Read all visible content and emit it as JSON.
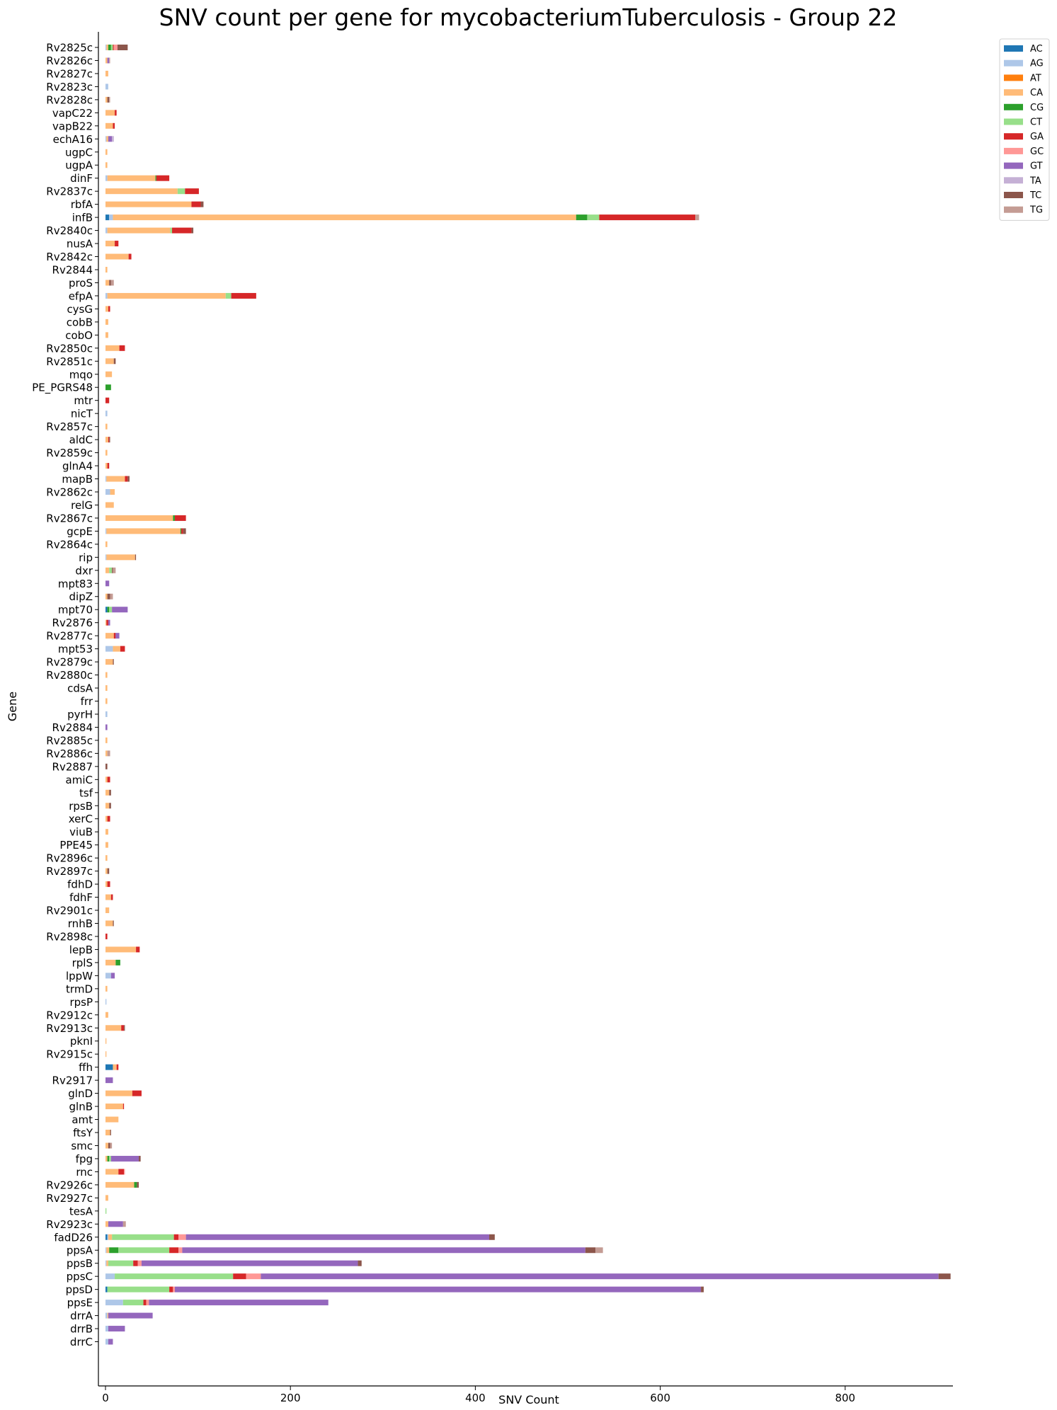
{
  "chart_data": {
    "type": "bar",
    "orientation": "horizontal",
    "stacked": true,
    "title": "SNV count per gene for mycobacteriumTuberculosis - Group 22",
    "xlabel": "SNV Count",
    "ylabel": "Gene",
    "xlim": [
      -8,
      918
    ],
    "xticks": [
      0,
      200,
      400,
      600,
      800
    ],
    "legend_position": "top-right",
    "series_names": [
      "AC",
      "AG",
      "AT",
      "CA",
      "CG",
      "CT",
      "GA",
      "GC",
      "GT",
      "TA",
      "TC",
      "TG"
    ],
    "colors": {
      "AC": "#1f77b4",
      "AG": "#aec7e8",
      "AT": "#ff7f0e",
      "CA": "#ffbb78",
      "CG": "#2ca02c",
      "CT": "#98df8a",
      "GA": "#d62728",
      "GC": "#ff9896",
      "GT": "#9467bd",
      "TA": "#c5b0d5",
      "TC": "#8c564b",
      "TG": "#c49c94"
    },
    "genes": [
      "Rv2825c",
      "Rv2826c",
      "Rv2827c",
      "Rv2823c",
      "Rv2828c",
      "vapC22",
      "vapB22",
      "echA16",
      "ugpC",
      "ugpA",
      "dinF",
      "Rv2837c",
      "rbfA",
      "infB",
      "Rv2840c",
      "nusA",
      "Rv2842c",
      "Rv2844",
      "proS",
      "efpA",
      "cysG",
      "cobB",
      "cobO",
      "Rv2850c",
      "Rv2851c",
      "mqo",
      "PE_PGRS48",
      "mtr",
      "nicT",
      "Rv2857c",
      "aldC",
      "Rv2859c",
      "glnA4",
      "mapB",
      "Rv2862c",
      "relG",
      "Rv2867c",
      "gcpE",
      "Rv2864c",
      "rip",
      "dxr",
      "mpt83",
      "dipZ",
      "mpt70",
      "Rv2876",
      "Rv2877c",
      "mpt53",
      "Rv2879c",
      "Rv2880c",
      "cdsA",
      "frr",
      "pyrH",
      "Rv2884",
      "Rv2885c",
      "Rv2886c",
      "Rv2887",
      "amiC",
      "tsf",
      "rpsB",
      "xerC",
      "viuB",
      "PPE45",
      "Rv2896c",
      "Rv2897c",
      "fdhD",
      "fdhF",
      "Rv2901c",
      "rnhB",
      "Rv2898c",
      "lepB",
      "rplS",
      "lppW",
      "trmD",
      "rpsP",
      "Rv2912c",
      "Rv2913c",
      "pknI",
      "Rv2915c",
      "ffh",
      "Rv2917",
      "glnD",
      "glnB",
      "amt",
      "ftsY",
      "smc",
      "fpg",
      "rnc",
      "Rv2926c",
      "Rv2927c",
      "tesA",
      "Rv2923c",
      "fadD26",
      "ppsA",
      "ppsB",
      "ppsC",
      "ppsD",
      "ppsE",
      "drrA",
      "drrB",
      "drrC"
    ],
    "stacks": [
      {
        "AG": 1,
        "CA": 2,
        "CG": 3,
        "CT": 2,
        "GA": 1,
        "GC": 4,
        "TC": 11
      },
      {
        "CA": 2,
        "GT": 2,
        "TG": 1
      },
      {
        "CA": 3
      },
      {
        "AG": 3
      },
      {
        "CA": 2,
        "TC": 2,
        "TG": 1
      },
      {
        "CA": 10,
        "GA": 2
      },
      {
        "CA": 8,
        "GA": 2
      },
      {
        "AG": 1,
        "CA": 2,
        "GT": 4,
        "TA": 2
      },
      {
        "CA": 2
      },
      {
        "CA": 2
      },
      {
        "AG": 2,
        "CA": 52,
        "CG": 1,
        "GA": 14
      },
      {
        "CA": 78,
        "CT": 8,
        "GA": 15
      },
      {
        "CA": 93,
        "GA": 10,
        "TC": 3
      },
      {
        "AC": 4,
        "AG": 4,
        "CA": 501,
        "CG": 12,
        "CT": 13,
        "GA": 104,
        "TG": 4
      },
      {
        "AG": 2,
        "CA": 68,
        "CT": 2,
        "GA": 21,
        "TC": 2
      },
      {
        "CA": 10,
        "GA": 4
      },
      {
        "CA": 25,
        "GA": 3
      },
      {
        "CA": 2
      },
      {
        "CA": 4,
        "TC": 2,
        "TG": 3
      },
      {
        "AG": 2,
        "CA": 128,
        "CT": 6,
        "GA": 27
      },
      {
        "CA": 3,
        "GA": 2
      },
      {
        "CA": 3
      },
      {
        "CA": 3
      },
      {
        "CA": 15,
        "GA": 6
      },
      {
        "CA": 9,
        "TC": 2
      },
      {
        "CA": 7
      },
      {
        "CG": 6
      },
      {
        "GA": 4
      },
      {
        "AG": 2
      },
      {
        "CA": 2
      },
      {
        "CA": 3,
        "GA": 1,
        "TC": 1
      },
      {
        "CA": 2
      },
      {
        "CA": 2,
        "GA": 2
      },
      {
        "AG": 1,
        "CA": 20,
        "GA": 3,
        "TC": 2
      },
      {
        "AG": 5,
        "CA": 5
      },
      {
        "CA": 9
      },
      {
        "CA": 73,
        "CG": 2,
        "GA": 12
      },
      {
        "AG": 1,
        "CA": 80,
        "CG": 1,
        "GA": 2,
        "TC": 3
      },
      {
        "CA": 2
      },
      {
        "AG": 1,
        "CA": 31,
        "TC": 1
      },
      {
        "CA": 4,
        "CT": 3,
        "TC": 1,
        "TG": 3
      },
      {
        "GT": 4
      },
      {
        "CA": 2,
        "TC": 3,
        "TG": 3
      },
      {
        "AC": 2,
        "CG": 2,
        "CT": 3,
        "GT": 17
      },
      {
        "CA": 1,
        "GA": 2,
        "GT": 2
      },
      {
        "CA": 9,
        "GA": 2,
        "GT": 4
      },
      {
        "AG": 8,
        "CA": 8,
        "GA": 5
      },
      {
        "CA": 8,
        "TC": 1
      },
      {
        "CA": 2
      },
      {
        "CA": 2
      },
      {
        "CA": 2
      },
      {
        "AG": 2
      },
      {
        "GT": 2
      },
      {
        "CA": 2
      },
      {
        "CA": 2,
        "TG": 3
      },
      {
        "TC": 2
      },
      {
        "CA": 2,
        "GA": 3
      },
      {
        "CA": 4,
        "TC": 2
      },
      {
        "CA": 4,
        "TC": 2
      },
      {
        "CA": 2,
        "GA": 3
      },
      {
        "CA": 3
      },
      {
        "CA": 3
      },
      {
        "CA": 2
      },
      {
        "CA": 2,
        "TC": 2
      },
      {
        "CA": 2,
        "GA": 3
      },
      {
        "CA": 6,
        "GA": 2
      },
      {
        "CA": 4
      },
      {
        "CA": 8,
        "TC": 1
      },
      {
        "GA": 2
      },
      {
        "CA": 33,
        "GA": 4
      },
      {
        "CA": 11,
        "CG": 5
      },
      {
        "AG": 6,
        "GT": 4
      },
      {
        "CA": 2
      },
      {
        "AG": 1
      },
      {
        "CA": 3
      },
      {
        "CA": 17,
        "GA": 3,
        "TC": 1
      },
      {
        "CA": 1
      },
      {
        "CA": 1
      },
      {
        "AC": 8,
        "CA": 4,
        "GA": 2
      },
      {
        "GT": 8
      },
      {
        "CA": 29,
        "GA": 10
      },
      {
        "CA": 19,
        "GA": 1
      },
      {
        "CA": 14
      },
      {
        "CA": 5,
        "TC": 1
      },
      {
        "CA": 3,
        "TC": 2,
        "TG": 2
      },
      {
        "CA": 2,
        "CG": 2,
        "CT": 2,
        "TC": 2,
        "GT": 30
      },
      {
        "CA": 14,
        "GA": 6,
        "GC": 1
      },
      {
        "CA": 31,
        "CG": 3,
        "TC": 2
      },
      {
        "CA": 3
      },
      {
        "CT": 1
      },
      {
        "CA": 3,
        "TG": 3,
        "GT": 16
      },
      {
        "AC": 2,
        "AG": 1,
        "CA": 4,
        "CT": 67,
        "GA": 5,
        "GC": 8,
        "GT": 328,
        "TC": 6
      },
      {
        "AG": 1,
        "CA": 3,
        "CG": 10,
        "CT": 55,
        "GA": 10,
        "GC": 4,
        "GT": 436,
        "TC": 11,
        "TG": 8
      },
      {
        "AG": 1,
        "CA": 2,
        "CT": 27,
        "GA": 5,
        "GC": 4,
        "GT": 234,
        "TC": 4
      },
      {
        "AG": 10,
        "CT": 128,
        "GA": 14,
        "GC": 16,
        "GT": 733,
        "TC": 13
      },
      {
        "AC": 2,
        "CT": 67,
        "GA": 4,
        "GC": 2,
        "GT": 569,
        "TC": 3
      },
      {
        "AG": 19,
        "CT": 22,
        "GA": 3,
        "GC": 3,
        "GT": 194
      },
      {
        "AG": 2,
        "CA": 1,
        "GT": 48
      },
      {
        "AG": 3,
        "GT": 18
      },
      {
        "AG": 3,
        "GT": 5
      }
    ]
  }
}
